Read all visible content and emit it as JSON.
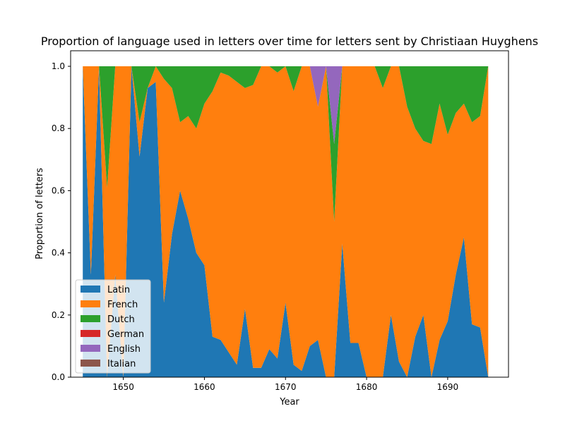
{
  "chart_data": {
    "type": "area",
    "stacked": true,
    "title": "Proportion of language used in letters over time for letters sent by Christiaan Huyghens",
    "xlabel": "Year",
    "ylabel": "Proportion of letters",
    "xlim": [
      1643.5,
      1697.5
    ],
    "ylim": [
      0,
      1.05
    ],
    "xticks": [
      1650,
      1660,
      1670,
      1680,
      1690
    ],
    "yticks": [
      0.0,
      0.2,
      0.4,
      0.6,
      0.8,
      1.0
    ],
    "xtick_labels": [
      "1650",
      "1660",
      "1670",
      "1680",
      "1690"
    ],
    "ytick_labels": [
      "0.0",
      "0.2",
      "0.4",
      "0.6",
      "0.8",
      "1.0"
    ],
    "legend_position": "lower-left",
    "x": [
      1645,
      1646,
      1647,
      1648,
      1649,
      1650,
      1651,
      1652,
      1653,
      1654,
      1655,
      1656,
      1657,
      1658,
      1659,
      1660,
      1661,
      1662,
      1663,
      1664,
      1665,
      1666,
      1667,
      1668,
      1669,
      1670,
      1671,
      1672,
      1673,
      1674,
      1675,
      1676,
      1677,
      1678,
      1679,
      1680,
      1681,
      1682,
      1683,
      1684,
      1685,
      1686,
      1687,
      1688,
      1689,
      1690,
      1691,
      1692,
      1693,
      1694,
      1695
    ],
    "series": [
      {
        "name": "Latin",
        "color": "#1f77b4",
        "values": [
          1.0,
          0.33,
          1.0,
          0.0,
          0.33,
          0.0,
          1.0,
          0.71,
          0.93,
          0.95,
          0.24,
          0.46,
          0.6,
          0.51,
          0.4,
          0.36,
          0.13,
          0.12,
          0.08,
          0.04,
          0.22,
          0.03,
          0.03,
          0.09,
          0.06,
          0.24,
          0.04,
          0.02,
          0.1,
          0.12,
          0.0,
          0.0,
          0.43,
          0.11,
          0.11,
          0.0,
          0.0,
          0.0,
          0.2,
          0.05,
          0.0,
          0.13,
          0.2,
          0.0,
          0.12,
          0.18,
          0.33,
          0.45,
          0.17,
          0.16,
          0.0
        ]
      },
      {
        "name": "French",
        "color": "#ff7f0e",
        "values": [
          0.0,
          0.67,
          0.0,
          0.61,
          0.67,
          1.0,
          0.0,
          0.11,
          0.0,
          0.05,
          0.72,
          0.47,
          0.22,
          0.33,
          0.4,
          0.52,
          0.79,
          0.86,
          0.89,
          0.91,
          0.71,
          0.91,
          0.97,
          0.91,
          0.92,
          0.76,
          0.88,
          0.98,
          0.9,
          0.75,
          1.0,
          0.5,
          0.57,
          0.89,
          0.89,
          1.0,
          1.0,
          0.93,
          0.8,
          0.95,
          0.87,
          0.67,
          0.56,
          0.75,
          0.76,
          0.6,
          0.52,
          0.43,
          0.65,
          0.68,
          1.0
        ]
      },
      {
        "name": "Dutch",
        "color": "#2ca02c",
        "values": [
          0.0,
          0.0,
          0.0,
          0.39,
          0.0,
          0.0,
          0.0,
          0.18,
          0.07,
          0.0,
          0.04,
          0.07,
          0.18,
          0.16,
          0.2,
          0.12,
          0.08,
          0.02,
          0.03,
          0.05,
          0.07,
          0.06,
          0.0,
          0.0,
          0.02,
          0.0,
          0.08,
          0.0,
          0.0,
          0.0,
          0.0,
          0.25,
          0.0,
          0.0,
          0.0,
          0.0,
          0.0,
          0.07,
          0.0,
          0.0,
          0.13,
          0.2,
          0.24,
          0.25,
          0.12,
          0.22,
          0.15,
          0.12,
          0.18,
          0.16,
          0.0
        ]
      },
      {
        "name": "German",
        "color": "#d62728",
        "values": [
          0,
          0,
          0,
          0,
          0,
          0,
          0,
          0,
          0,
          0,
          0,
          0,
          0,
          0,
          0,
          0,
          0,
          0,
          0,
          0,
          0,
          0,
          0,
          0,
          0,
          0,
          0,
          0,
          0,
          0,
          0,
          0,
          0,
          0,
          0,
          0,
          0,
          0,
          0,
          0,
          0,
          0,
          0,
          0,
          0,
          0,
          0,
          0,
          0,
          0,
          0
        ]
      },
      {
        "name": "English",
        "color": "#9467bd",
        "values": [
          0,
          0,
          0,
          0,
          0,
          0,
          0,
          0,
          0,
          0,
          0,
          0,
          0,
          0,
          0,
          0,
          0,
          0,
          0,
          0,
          0,
          0,
          0,
          0,
          0,
          0,
          0,
          0,
          0,
          0.13,
          0,
          0.25,
          0,
          0,
          0,
          0,
          0,
          0,
          0,
          0,
          0,
          0,
          0,
          0,
          0,
          0,
          0,
          0,
          0,
          0,
          0
        ]
      },
      {
        "name": "Italian",
        "color": "#8c564b",
        "values": [
          0,
          0,
          0,
          0,
          0,
          0,
          0,
          0,
          0,
          0,
          0,
          0,
          0,
          0,
          0,
          0,
          0,
          0,
          0,
          0,
          0,
          0,
          0,
          0,
          0,
          0,
          0,
          0,
          0,
          0,
          0,
          0,
          0,
          0,
          0,
          0,
          0,
          0,
          0,
          0,
          0,
          0,
          0,
          0,
          0,
          0,
          0,
          0,
          0,
          0,
          0
        ]
      }
    ]
  }
}
